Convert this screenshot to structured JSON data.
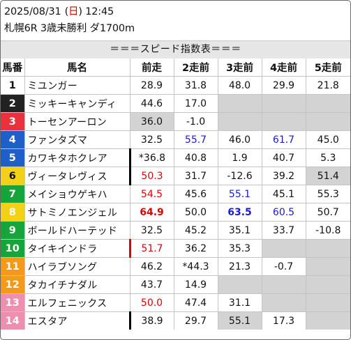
{
  "header": {
    "date": "2025/08/31",
    "dow_open": "(",
    "dow": "日",
    "dow_close": ")",
    "time": "12:45",
    "race": "札幌6R 3歳未勝利 ダ1700m"
  },
  "title": "＝＝＝スピード指数表＝＝＝",
  "columns": [
    "馬番",
    "馬名",
    "前走",
    "2走前",
    "3走前",
    "4走前",
    "5走前"
  ],
  "colors": {
    "red": "#e00000",
    "blue": "#1a1ad6",
    "empty_cell": "#d3d3d3",
    "bracket_1": "#ffffff",
    "bracket_2": "#222222",
    "bracket_3": "#e8333c",
    "bracket_4": "#1e5fc8",
    "bracket_5": "#f2d116",
    "bracket_6": "#17a43a",
    "bracket_7": "#f39a1b",
    "bracket_8": "#ef8fb0"
  },
  "rows": [
    {
      "num": "1",
      "name": "ミユンガー",
      "bg": "#ffffff",
      "fg": "#111111",
      "divider": "none",
      "cells": [
        {
          "v": "28.9"
        },
        {
          "v": "31.8"
        },
        {
          "v": "48.0"
        },
        {
          "v": "29.9"
        },
        {
          "v": "21.8"
        }
      ]
    },
    {
      "num": "2",
      "name": "ミッキーキャンディ",
      "bg": "#222222",
      "fg": "#ffffff",
      "divider": "none",
      "cells": [
        {
          "v": "44.6"
        },
        {
          "v": "17.0"
        },
        {
          "v": ""
        },
        {
          "v": ""
        },
        {
          "v": ""
        }
      ]
    },
    {
      "num": "3",
      "name": "トーセンアーロン",
      "bg": "#e8333c",
      "fg": "#ffffff",
      "divider": "none",
      "cells": [
        {
          "v": "36.0",
          "s": "g"
        },
        {
          "v": "-1.0"
        },
        {
          "v": ""
        },
        {
          "v": ""
        },
        {
          "v": ""
        }
      ]
    },
    {
      "num": "4",
      "name": "ファンタズマ",
      "bg": "#1e5fc8",
      "fg": "#ffffff",
      "divider": "none",
      "cells": [
        {
          "v": "32.5"
        },
        {
          "v": "55.7",
          "s": "blue"
        },
        {
          "v": "46.0"
        },
        {
          "v": "61.7",
          "s": "blue"
        },
        {
          "v": "45.0"
        }
      ]
    },
    {
      "num": "5",
      "name": "カワキタホクレア",
      "bg": "#1e5fc8",
      "fg": "#ffffff",
      "divider": "black",
      "cells": [
        {
          "v": "*36.8"
        },
        {
          "v": "40.8"
        },
        {
          "v": "1.9"
        },
        {
          "v": "40.7"
        },
        {
          "v": "5.3"
        }
      ]
    },
    {
      "num": "6",
      "name": "ヴィータレヴィス",
      "bg": "#f2d116",
      "fg": "#111111",
      "divider": "black",
      "cells": [
        {
          "v": "50.3",
          "s": "red"
        },
        {
          "v": "31.7"
        },
        {
          "v": "-12.6"
        },
        {
          "v": "39.2"
        },
        {
          "v": "51.4",
          "s": "g"
        }
      ]
    },
    {
      "num": "7",
      "name": "メイショウゲキハ",
      "bg": "#17a43a",
      "fg": "#ffffff",
      "divider": "none",
      "cells": [
        {
          "v": "54.5",
          "s": "red"
        },
        {
          "v": "45.6"
        },
        {
          "v": "55.1",
          "s": "blue"
        },
        {
          "v": "45.1"
        },
        {
          "v": "55.3"
        }
      ]
    },
    {
      "num": "8",
      "name": "サトミノエンジェル",
      "bg": "#f2d116",
      "fg": "#ffffff",
      "divider": "none",
      "cells": [
        {
          "v": "64.9",
          "s": "red-bold"
        },
        {
          "v": "50.0"
        },
        {
          "v": "63.5",
          "s": "blue-bold"
        },
        {
          "v": "60.5",
          "s": "blue"
        },
        {
          "v": "50.7"
        }
      ]
    },
    {
      "num": "9",
      "name": "ボールドハーテッド",
      "bg": "#17a43a",
      "fg": "#ffffff",
      "divider": "none",
      "cells": [
        {
          "v": "32.5"
        },
        {
          "v": "45.2"
        },
        {
          "v": "35.1"
        },
        {
          "v": "33.7"
        },
        {
          "v": "-10.8"
        }
      ]
    },
    {
      "num": "10",
      "name": "タイキインドラ",
      "bg": "#17a43a",
      "fg": "#ffffff",
      "divider": "red",
      "cells": [
        {
          "v": "51.7",
          "s": "red"
        },
        {
          "v": "36.2"
        },
        {
          "v": "35.3"
        },
        {
          "v": ""
        },
        {
          "v": ""
        }
      ]
    },
    {
      "num": "11",
      "name": "ハイラブソング",
      "bg": "#f39a1b",
      "fg": "#ffffff",
      "divider": "none",
      "cells": [
        {
          "v": "46.2"
        },
        {
          "v": "*44.3"
        },
        {
          "v": "21.3"
        },
        {
          "v": "-0.7"
        },
        {
          "v": ""
        }
      ]
    },
    {
      "num": "12",
      "name": "タカイチナダル",
      "bg": "#f39a1b",
      "fg": "#ffffff",
      "divider": "none",
      "cells": [
        {
          "v": "43.7"
        },
        {
          "v": "14.9"
        },
        {
          "v": ""
        },
        {
          "v": ""
        },
        {
          "v": ""
        }
      ]
    },
    {
      "num": "13",
      "name": "エルフェニックス",
      "bg": "#ef8fb0",
      "fg": "#ffffff",
      "divider": "none",
      "cells": [
        {
          "v": "50.0",
          "s": "red"
        },
        {
          "v": "47.4"
        },
        {
          "v": "31.1"
        },
        {
          "v": ""
        },
        {
          "v": ""
        }
      ]
    },
    {
      "num": "14",
      "name": "エスタア",
      "bg": "#ef8fb0",
      "fg": "#ffffff",
      "divider": "black",
      "cells": [
        {
          "v": "38.9"
        },
        {
          "v": "29.7"
        },
        {
          "v": "55.1",
          "s": "g"
        },
        {
          "v": "17.3"
        },
        {
          "v": ""
        }
      ]
    }
  ]
}
